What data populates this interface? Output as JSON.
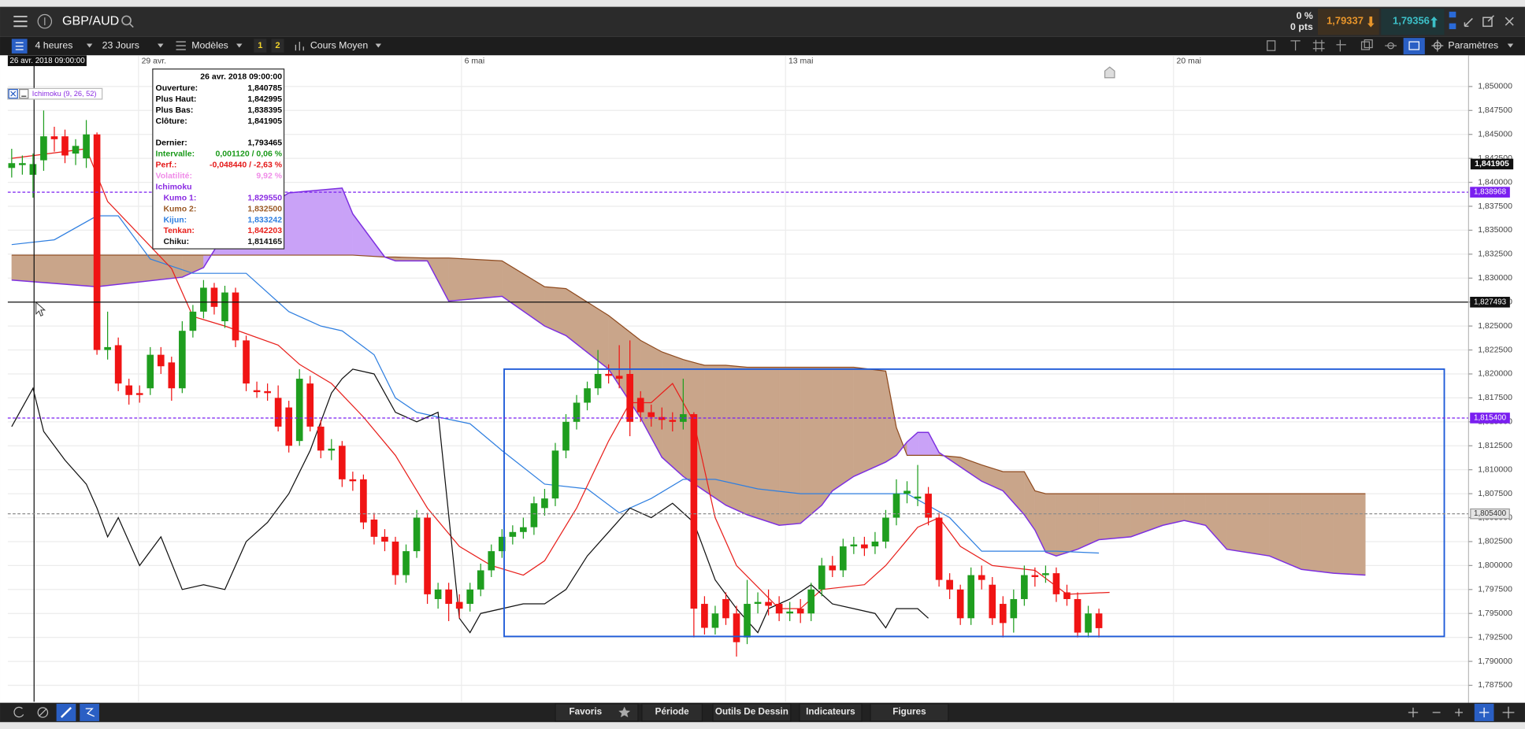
{
  "top_bar": {
    "symbol": "GBP/AUD",
    "change_pct": "0 %",
    "change_pts": "0 pts",
    "sell_price": "1,79337",
    "buy_price": "1,79356"
  },
  "toolbar": {
    "timeframe": "4 heures",
    "period": "23 Jours",
    "templates": "Modèles",
    "layout_1": "1",
    "layout_2": "2",
    "price_mode": "Cours Moyen",
    "settings": "Paramètres"
  },
  "bottom_bar": {
    "items": [
      "Favoris",
      "Période",
      "Outils De Dessin",
      "Indicateurs",
      "Figures"
    ]
  },
  "chart": {
    "type": "candlestick",
    "cursor_time": "26 avr. 2018 09:00:00",
    "indicator_label": "Ichimoku (9, 26, 52)",
    "up_color": "#1f9e1f",
    "down_color": "#f01414",
    "grid": true,
    "xlim": [
      -0.365,
      136.68
    ],
    "ylim": [
      1.78578,
      1.85213
    ],
    "xticks": [
      {
        "value": 11.9,
        "label": "29 avr."
      },
      {
        "value": 42.2,
        "label": "6 mai"
      },
      {
        "value": 72.6,
        "label": "13 mai"
      },
      {
        "value": 109,
        "label": "20 mai"
      }
    ],
    "yticks": [
      {
        "value": 1.85,
        "label": "1,850000"
      },
      {
        "value": 1.8475,
        "label": "1,847500"
      },
      {
        "value": 1.845,
        "label": "1,845000"
      },
      {
        "value": 1.8425,
        "label": "1,842500"
      },
      {
        "value": 1.84,
        "label": "1,840000"
      },
      {
        "value": 1.8375,
        "label": "1,837500"
      },
      {
        "value": 1.835,
        "label": "1,835000"
      },
      {
        "value": 1.8325,
        "label": "1,832500"
      },
      {
        "value": 1.83,
        "label": "1,830000"
      },
      {
        "value": 1.8275,
        "label": "1,827500"
      },
      {
        "value": 1.825,
        "label": "1,825000"
      },
      {
        "value": 1.8225,
        "label": "1,822500"
      },
      {
        "value": 1.82,
        "label": "1,820000"
      },
      {
        "value": 1.8175,
        "label": "1,817500"
      },
      {
        "value": 1.815,
        "label": "1,815000"
      },
      {
        "value": 1.8125,
        "label": "1,812500"
      },
      {
        "value": 1.81,
        "label": "1,810000"
      },
      {
        "value": 1.8075,
        "label": "1,807500"
      },
      {
        "value": 1.805,
        "label": "1,805000"
      },
      {
        "value": 1.8025,
        "label": "1,802500"
      },
      {
        "value": 1.8,
        "label": "1,800000"
      },
      {
        "value": 1.7975,
        "label": "1,797500"
      },
      {
        "value": 1.795,
        "label": "1,795000"
      },
      {
        "value": 1.7925,
        "label": "1,792500"
      },
      {
        "value": 1.79,
        "label": "1,790000"
      },
      {
        "value": 1.7875,
        "label": "1,787500"
      }
    ],
    "candles": {
      "open": [
        1.8415,
        1.8418,
        1.840785,
        1.8423,
        1.8448,
        1.8448,
        1.843,
        1.8425,
        1.845,
        1.8225,
        1.823,
        1.8188,
        1.818,
        1.8185,
        1.822,
        1.8212,
        1.8185,
        1.8245,
        1.8265,
        1.829,
        1.8255,
        1.8285,
        1.8235,
        1.8183,
        1.8182,
        1.8175,
        1.8165,
        1.813,
        1.819,
        1.8145,
        1.812,
        1.8125,
        1.809,
        1.809,
        1.8048,
        1.803,
        1.8025,
        1.799,
        1.8015,
        1.805,
        1.7965,
        1.7975,
        1.7962,
        1.796,
        1.7975,
        1.7995,
        1.8015,
        1.803,
        1.8035,
        1.804,
        1.806,
        1.807,
        1.812,
        1.815,
        1.817,
        1.8185,
        1.82,
        1.8198,
        1.82,
        1.8175,
        1.816,
        1.8155,
        1.8152,
        1.815,
        1.8158,
        1.796,
        1.7935,
        1.7965,
        1.795,
        1.7925,
        1.796,
        1.7962,
        1.796,
        1.795,
        1.7955,
        1.795,
        1.7975,
        1.8,
        1.7995,
        1.802,
        1.8022,
        1.802,
        1.8025,
        1.805,
        1.8075,
        1.807,
        1.8075,
        1.805,
        1.7985,
        1.7975,
        1.7945,
        1.799,
        1.798,
        1.796,
        1.7945,
        1.7965,
        1.799,
        1.799,
        1.7992,
        1.7972,
        1.7965,
        1.793,
        1.795
      ],
      "high": [
        1.8435,
        1.8428,
        1.842995,
        1.8475,
        1.8458,
        1.8455,
        1.8445,
        1.8465,
        1.8452,
        1.8265,
        1.8238,
        1.8195,
        1.8188,
        1.8228,
        1.8228,
        1.8218,
        1.8255,
        1.8272,
        1.8298,
        1.8295,
        1.8292,
        1.829,
        1.824,
        1.8192,
        1.819,
        1.8188,
        1.8172,
        1.8205,
        1.8198,
        1.8152,
        1.8132,
        1.813,
        1.8098,
        1.8095,
        1.8055,
        1.8038,
        1.803,
        1.8022,
        1.8058,
        1.8055,
        1.7982,
        1.7982,
        1.797,
        1.7982,
        1.8002,
        1.8022,
        1.8038,
        1.8042,
        1.805,
        1.8072,
        1.808,
        1.8128,
        1.8158,
        1.8178,
        1.8192,
        1.8225,
        1.821,
        1.823,
        1.8235,
        1.8182,
        1.8168,
        1.8165,
        1.816,
        1.8195,
        1.816,
        1.7968,
        1.7958,
        1.7972,
        1.7958,
        1.7985,
        1.7972,
        1.7975,
        1.7968,
        1.7962,
        1.7965,
        1.7982,
        1.8008,
        1.801,
        1.8028,
        1.803,
        1.803,
        1.8035,
        1.8058,
        1.809,
        1.8088,
        1.8105,
        1.8082,
        1.8055,
        1.7992,
        1.798,
        1.7998,
        1.8,
        1.7988,
        1.7968,
        1.7975,
        1.8,
        1.7998,
        1.8,
        1.7998,
        1.798,
        1.7972,
        1.7958,
        1.7955
      ],
      "low": [
        1.8405,
        1.8408,
        1.838395,
        1.8412,
        1.8432,
        1.842,
        1.8418,
        1.8415,
        1.822,
        1.8215,
        1.8182,
        1.8168,
        1.817,
        1.8178,
        1.82,
        1.8172,
        1.818,
        1.8238,
        1.8258,
        1.8262,
        1.8248,
        1.8228,
        1.8182,
        1.8175,
        1.8172,
        1.814,
        1.8118,
        1.8125,
        1.814,
        1.8112,
        1.811,
        1.8082,
        1.8078,
        1.8038,
        1.8022,
        1.8015,
        1.798,
        1.7982,
        1.8008,
        1.796,
        1.7955,
        1.7942,
        1.7945,
        1.7952,
        1.7968,
        1.7988,
        1.8008,
        1.8022,
        1.8028,
        1.8032,
        1.8052,
        1.8062,
        1.8112,
        1.8142,
        1.8162,
        1.8178,
        1.819,
        1.8185,
        1.8135,
        1.815,
        1.8145,
        1.8142,
        1.814,
        1.8142,
        1.7925,
        1.7928,
        1.7928,
        1.7938,
        1.7905,
        1.7918,
        1.795,
        1.7948,
        1.7942,
        1.7942,
        1.794,
        1.7942,
        1.7968,
        1.7988,
        1.7988,
        1.8012,
        1.801,
        1.8012,
        1.8018,
        1.8042,
        1.8065,
        1.8062,
        1.8042,
        1.7978,
        1.7965,
        1.7938,
        1.7938,
        1.7975,
        1.7938,
        1.7925,
        1.793,
        1.7958,
        1.7978,
        1.7982,
        1.7962,
        1.7958,
        1.7925,
        1.7925,
        1.7925
      ],
      "close": [
        1.842,
        1.842,
        1.841905,
        1.8448,
        1.8445,
        1.8428,
        1.8438,
        1.845,
        1.8225,
        1.8228,
        1.819,
        1.8178,
        1.8178,
        1.822,
        1.8208,
        1.8185,
        1.8245,
        1.8265,
        1.829,
        1.827,
        1.8285,
        1.8235,
        1.819,
        1.8181,
        1.818,
        1.8145,
        1.8125,
        1.8195,
        1.8145,
        1.812,
        1.8122,
        1.809,
        1.8088,
        1.8045,
        1.803,
        1.8025,
        1.799,
        1.8015,
        1.805,
        1.797,
        1.7975,
        1.796,
        1.7955,
        1.7975,
        1.7995,
        1.8015,
        1.803,
        1.8035,
        1.804,
        1.8065,
        1.807,
        1.812,
        1.815,
        1.817,
        1.8185,
        1.82,
        1.8198,
        1.8195,
        1.815,
        1.816,
        1.8155,
        1.8152,
        1.815,
        1.8158,
        1.7955,
        1.7935,
        1.795,
        1.7945,
        1.792,
        1.796,
        1.7962,
        1.7958,
        1.795,
        1.7952,
        1.795,
        1.7975,
        1.8,
        1.7995,
        1.802,
        1.8022,
        1.8018,
        1.8025,
        1.805,
        1.8075,
        1.8078,
        1.8072,
        1.805,
        1.7985,
        1.7975,
        1.7945,
        1.799,
        1.7985,
        1.7945,
        1.794,
        1.7965,
        1.799,
        1.7988,
        1.7992,
        1.797,
        1.7965,
        1.793,
        1.795,
        1.793465
      ]
    },
    "tenkan": {
      "color": "#e8201c",
      "x": [
        0,
        7,
        9,
        15,
        17,
        20,
        25,
        27,
        30,
        33,
        36,
        39,
        42,
        45,
        48,
        50,
        53,
        56,
        58,
        60,
        62,
        64,
        66,
        68,
        72,
        74,
        76,
        80,
        82,
        85,
        87,
        89,
        92,
        96,
        99,
        103
      ],
      "values": [
        1.8425,
        1.8435,
        1.838,
        1.831,
        1.826,
        1.825,
        1.823,
        1.821,
        1.819,
        1.8155,
        1.8115,
        1.806,
        1.802,
        1.8,
        1.799,
        1.8005,
        1.806,
        1.813,
        1.817,
        1.817,
        1.819,
        1.815,
        1.805,
        1.8,
        1.7955,
        1.7955,
        1.7975,
        1.798,
        1.8,
        1.804,
        1.805,
        1.802,
        1.8,
        1.7995,
        1.797,
        1.7972
      ]
    },
    "kijun": {
      "color": "#2f7fe0",
      "x": [
        0,
        4,
        8,
        10,
        13,
        17,
        22,
        26,
        29,
        31,
        34,
        36,
        38,
        40,
        43,
        46,
        50,
        54,
        57,
        60,
        63,
        66,
        70,
        74,
        80,
        84,
        88,
        91,
        95,
        98,
        102
      ],
      "values": [
        1.8335,
        1.834,
        1.8365,
        1.8365,
        1.832,
        1.8305,
        1.8305,
        1.8265,
        1.825,
        1.8245,
        1.822,
        1.8175,
        1.816,
        1.8155,
        1.8148,
        1.812,
        1.8085,
        1.808,
        1.8055,
        1.807,
        1.809,
        1.809,
        1.808,
        1.8075,
        1.8075,
        1.8075,
        1.805,
        1.8015,
        1.8015,
        1.8015,
        1.8013
      ]
    },
    "chiku": {
      "color": "#111111",
      "x": [
        0,
        2,
        3,
        5,
        7,
        8,
        9,
        10,
        12,
        14,
        16,
        18,
        20,
        22,
        24,
        26,
        28,
        30,
        31,
        32,
        34,
        36,
        38,
        40,
        42,
        43,
        44,
        46,
        48,
        50,
        52,
        54,
        56,
        58,
        60,
        62,
        64,
        66,
        68,
        70,
        71,
        73,
        75,
        77,
        79,
        81,
        82,
        83,
        85,
        86
      ],
      "values": [
        1.8145,
        1.8185,
        1.814,
        1.811,
        1.8085,
        1.806,
        1.803,
        1.805,
        1.8,
        1.803,
        1.7975,
        1.798,
        1.7975,
        1.8025,
        1.8045,
        1.8075,
        1.812,
        1.818,
        1.8195,
        1.8205,
        1.82,
        1.816,
        1.815,
        1.816,
        1.7945,
        1.793,
        1.795,
        1.7955,
        1.796,
        1.796,
        1.7975,
        1.801,
        1.8035,
        1.806,
        1.805,
        1.8065,
        1.8045,
        1.7985,
        1.7955,
        1.793,
        1.7955,
        1.7965,
        1.798,
        1.796,
        1.7955,
        1.795,
        1.7935,
        1.7955,
        1.7955,
        1.7945
      ]
    },
    "kumo": {
      "x": [
        0,
        8,
        16,
        18,
        20,
        26,
        31,
        32,
        35,
        36,
        39,
        41,
        46,
        50,
        52,
        56,
        59,
        61,
        63,
        65,
        67,
        69,
        72,
        74,
        76,
        77,
        79,
        82,
        83,
        84,
        85,
        86,
        87,
        89,
        91,
        93,
        95,
        96,
        97,
        98,
        100,
        102,
        105,
        108,
        110,
        112,
        114,
        118,
        121,
        124,
        127
      ],
      "kumo1": {
        "color": "#7d2fe0",
        "values": [
          1.8298,
          1.8291,
          1.8301,
          1.8311,
          1.8347,
          1.8389,
          1.8394,
          1.8367,
          1.8322,
          1.8318,
          1.8318,
          1.8276,
          1.8281,
          1.825,
          1.824,
          1.8205,
          1.8154,
          1.8113,
          1.8093,
          1.8078,
          1.8063,
          1.8053,
          1.8042,
          1.8044,
          1.8063,
          1.8078,
          1.8093,
          1.8108,
          1.8115,
          1.8129,
          1.8139,
          1.8139,
          1.8118,
          1.8103,
          1.8088,
          1.8078,
          1.8053,
          1.8037,
          1.8014,
          1.801,
          1.8017,
          1.8027,
          1.803,
          1.8042,
          1.8047,
          1.8042,
          1.8017,
          1.801,
          1.7996,
          1.7992,
          1.799
        ]
      },
      "kumo2": {
        "color": "#8f4a1e",
        "values": [
          1.8324,
          1.8324,
          1.8324,
          1.8324,
          1.8324,
          1.8324,
          1.8324,
          1.8324,
          1.8322,
          1.8322,
          1.8321,
          1.8321,
          1.8318,
          1.8291,
          1.8289,
          1.8261,
          1.8235,
          1.8223,
          1.8215,
          1.8209,
          1.8209,
          1.8207,
          1.8207,
          1.8207,
          1.8207,
          1.8207,
          1.8207,
          1.8203,
          1.8144,
          1.8115,
          1.8115,
          1.8115,
          1.8115,
          1.8113,
          1.8105,
          1.8098,
          1.8098,
          1.8078,
          1.8075,
          1.8075,
          1.8075,
          1.8075,
          1.8075,
          1.8075,
          1.8075,
          1.8075,
          1.8075,
          1.8075,
          1.8075,
          1.8075,
          1.8075
        ]
      },
      "fill_up": "#c9a2f7",
      "fill_down": "#c9a58a"
    },
    "rectangle": {
      "color": "#1d5ad8",
      "x": [
        46.2,
        134.4
      ],
      "y": [
        1.8205,
        1.7926
      ]
    },
    "crosshair_x": 2.1,
    "price_lines": [
      {
        "value": 1.838968,
        "label": "1,838968",
        "color": "#7a1ff0",
        "dashed": true
      },
      {
        "value": 1.8154,
        "label": "1,815400",
        "color": "#7a1ff0",
        "dashed": true
      },
      {
        "value": 1.8054,
        "label": "1,805400",
        "color": "#8c8c8c",
        "dashed": true
      },
      {
        "value": 1.827493,
        "label": "1,827493",
        "color": "#111111",
        "dashed": false
      }
    ],
    "last_price": {
      "value": 1.841905,
      "label": "1,841905"
    },
    "infobox": {
      "date": "26 avr. 2018 09:00:00",
      "rows": [
        {
          "label": "Ouverture:",
          "value": "1,840785",
          "color": "#000000"
        },
        {
          "label": "Plus Haut:",
          "value": "1,842995",
          "color": "#000000"
        },
        {
          "label": "Plus Bas:",
          "value": "1,838395",
          "color": "#000000"
        },
        {
          "label": "Clôture:",
          "value": "1,841905",
          "color": "#000000"
        },
        {
          "label": "Dernier:",
          "value": "1,793465",
          "color": "#000000"
        },
        {
          "label": "Intervalle:",
          "value": "0,001120 / 0,06 %",
          "color": "#1a9a1a"
        },
        {
          "label": "Perf.:",
          "value": "-0,048440 / -2,63 %",
          "color": "#e41818"
        },
        {
          "label": "Volatilité:",
          "value": "9,92 %",
          "color": "#f08ce8"
        },
        {
          "label": "Ichimoku",
          "color": "#8a2be2"
        },
        {
          "label": "Kumo 1:",
          "value": "1,829550",
          "color": "#8a2be2"
        },
        {
          "label": "Kumo 2:",
          "value": "1,832500",
          "color": "#9a5a26"
        },
        {
          "label": "Kijun:",
          "value": "1,833242",
          "color": "#2f7fe0"
        },
        {
          "label": "Tenkan:",
          "value": "1,842203",
          "color": "#e8201c"
        },
        {
          "label": "Chiku:",
          "value": "1,814165",
          "color": "#111111"
        }
      ]
    }
  }
}
